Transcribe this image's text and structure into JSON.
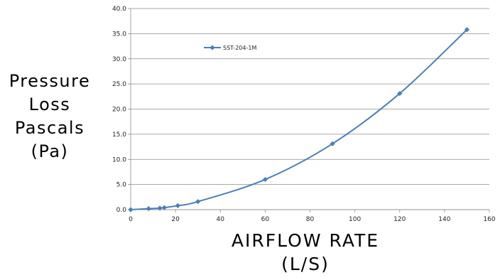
{
  "chart_data": {
    "type": "line",
    "title": "",
    "ylabel_lines": [
      "Pressure",
      "Loss",
      "Pascals",
      "(Pa)"
    ],
    "xlabel_lines": [
      "AIRFLOW RATE",
      "(L/S)"
    ],
    "xlim": [
      0,
      160
    ],
    "ylim": [
      0,
      40
    ],
    "x_ticks": [
      "0",
      "20",
      "40",
      "60",
      "80",
      "100",
      "120",
      "140",
      "160"
    ],
    "y_ticks": [
      "0.0",
      "5.0",
      "10.0",
      "15.0",
      "20.0",
      "25.0",
      "30.0",
      "35.0",
      "40.0"
    ],
    "grid": "horizontal",
    "legend_position": "top-left",
    "series": [
      {
        "name": "SST-204-1M",
        "color": "#4a7ebb",
        "marker": "diamond",
        "x": [
          0,
          8,
          13,
          15,
          21,
          30,
          60,
          90,
          120,
          150
        ],
        "y": [
          0.0,
          0.2,
          0.3,
          0.4,
          0.8,
          1.6,
          6.0,
          13.1,
          23.1,
          35.8
        ]
      }
    ]
  }
}
